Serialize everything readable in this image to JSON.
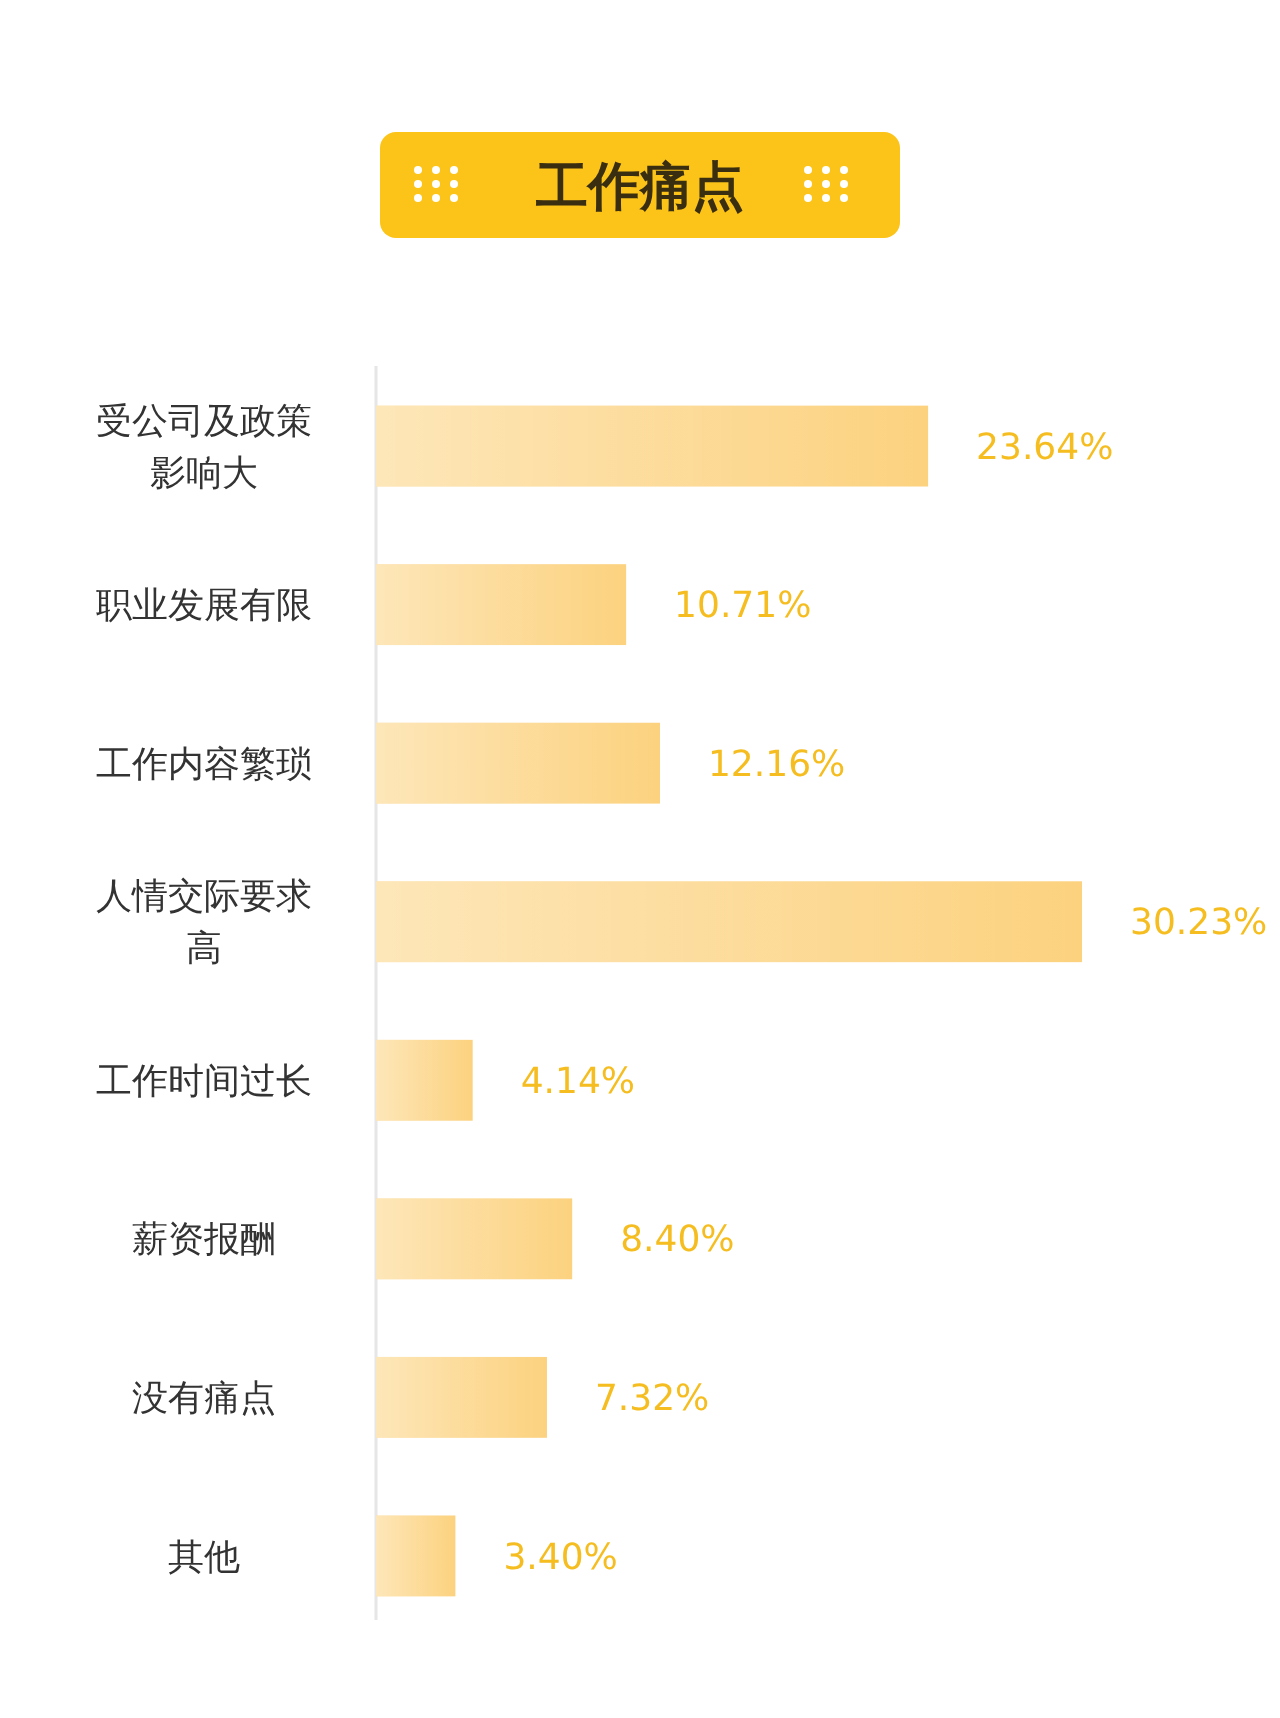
{
  "chart_data": {
    "type": "bar",
    "orientation": "horizontal",
    "title": "工作痛点",
    "categories": [
      "受公司及政策影响大",
      "职业发展有限",
      "工作内容繁琐",
      "人情交际要求高",
      "工作时间过长",
      "薪资报酬",
      "没有痛点",
      "其他"
    ],
    "values": [
      23.64,
      10.71,
      12.16,
      30.23,
      4.14,
      8.4,
      7.32,
      3.4
    ],
    "value_labels": [
      "23.64%",
      "10.71%",
      "12.16%",
      "30.23%",
      "4.14%",
      "8.40%",
      "7.32%",
      "3.40%"
    ],
    "color": "#fcd27f",
    "tick_labels": "y"
  }
}
